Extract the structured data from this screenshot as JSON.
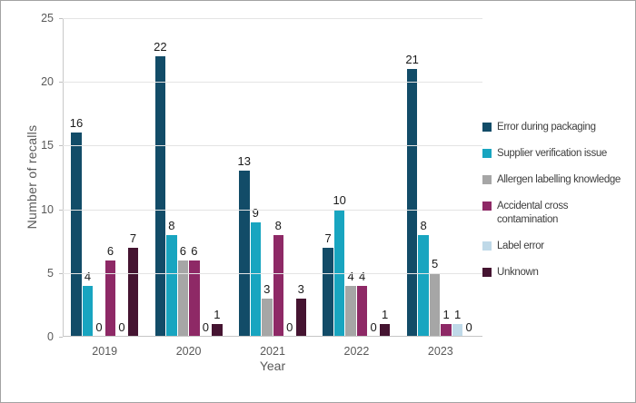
{
  "chart_data": {
    "type": "bar",
    "title": "",
    "xlabel": "Year",
    "ylabel": "Number of recalls",
    "categories": [
      "2019",
      "2020",
      "2021",
      "2022",
      "2023"
    ],
    "series": [
      {
        "name": "Error during packaging",
        "color": "#124C68",
        "values": [
          16,
          22,
          13,
          7,
          21
        ]
      },
      {
        "name": "Supplier verification issue",
        "color": "#18A5C0",
        "values": [
          4,
          8,
          9,
          10,
          8
        ]
      },
      {
        "name": "Allergen labelling knowledge",
        "color": "#A6A6A6",
        "values": [
          0,
          6,
          3,
          4,
          5
        ]
      },
      {
        "name": "Accidental cross contamination",
        "color": "#8E2966",
        "values": [
          6,
          6,
          8,
          4,
          1
        ],
        "wrap": true
      },
      {
        "name": "Label error",
        "color": "#BFD9E8",
        "values": [
          0,
          0,
          0,
          0,
          1
        ]
      },
      {
        "name": "Unknown",
        "color": "#451431",
        "values": [
          7,
          1,
          3,
          1,
          0
        ]
      }
    ],
    "ylim": [
      0,
      25
    ],
    "yticks": [
      0,
      5,
      10,
      15,
      20,
      25
    ],
    "grid": true,
    "legend_position": "right",
    "value_labels": true
  }
}
